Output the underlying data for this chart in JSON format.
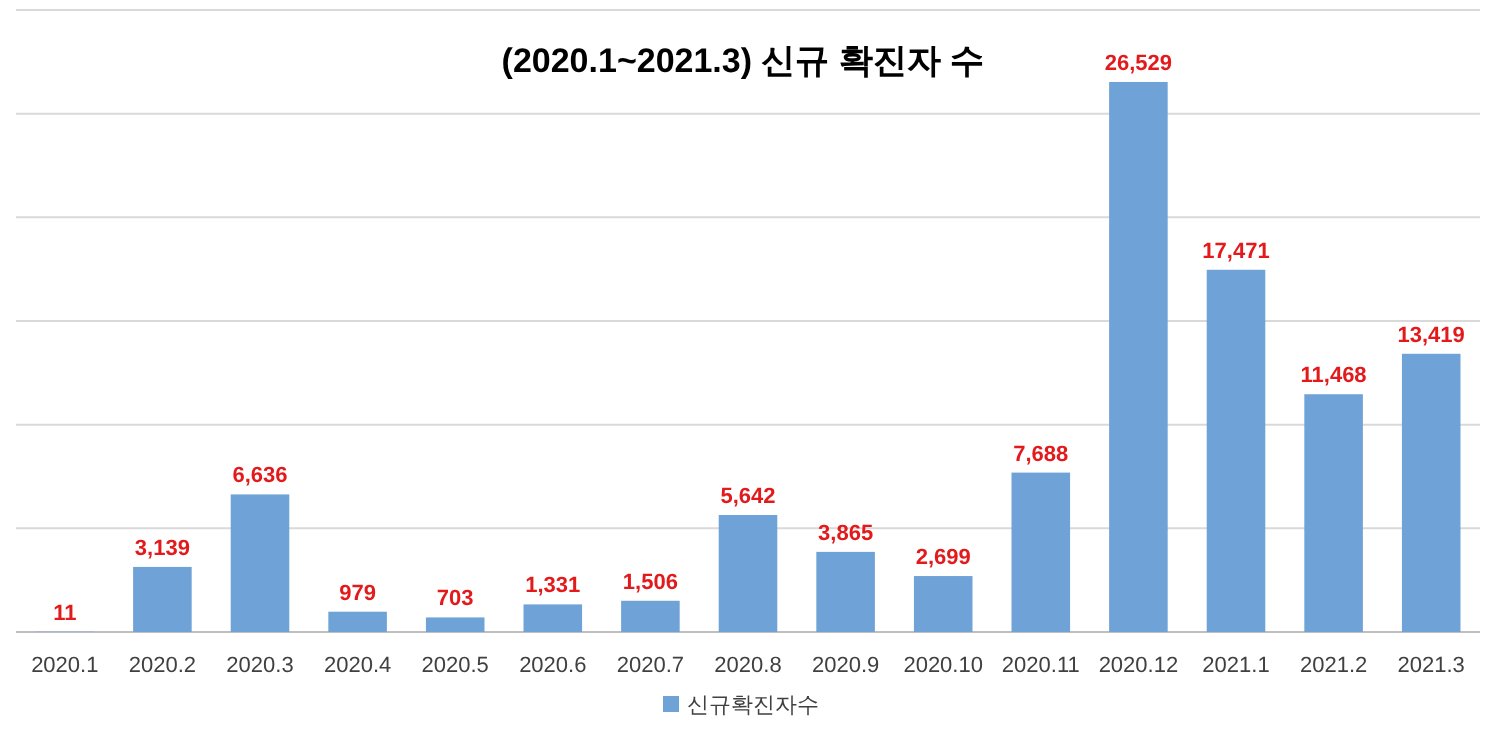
{
  "chart_data": {
    "type": "bar",
    "title": "(2020.1~2021.3) 신규 확진자 수",
    "categories": [
      "2020.1",
      "2020.2",
      "2020.3",
      "2020.4",
      "2020.5",
      "2020.6",
      "2020.7",
      "2020.8",
      "2020.9",
      "2020.10",
      "2020.11",
      "2020.12",
      "2021.1",
      "2021.2",
      "2021.3"
    ],
    "series": [
      {
        "name": "신규확진자수",
        "color": "#6fa3d8",
        "values": [
          11,
          3139,
          6636,
          979,
          703,
          1331,
          1506,
          5642,
          3865,
          2699,
          7688,
          26529,
          17471,
          11468,
          13419
        ],
        "value_labels": [
          "11",
          "3,139",
          "6,636",
          "979",
          "703",
          "1,331",
          "1,506",
          "5,642",
          "3,865",
          "2,699",
          "7,688",
          "26,529",
          "17,471",
          "11,468",
          "13,419"
        ]
      }
    ],
    "ylim": [
      0,
      30000
    ],
    "yticks": [
      {
        "value": 0,
        "label": null
      },
      {
        "value": 5000,
        "label": null
      },
      {
        "value": 10000,
        "label": null
      },
      {
        "value": 15000,
        "label": null
      },
      {
        "value": 20000,
        "label": null
      },
      {
        "value": 25000,
        "label": null
      },
      {
        "value": 30000,
        "label": null
      }
    ],
    "tick_labels": "x",
    "grid": "y",
    "legend": "bottom"
  }
}
